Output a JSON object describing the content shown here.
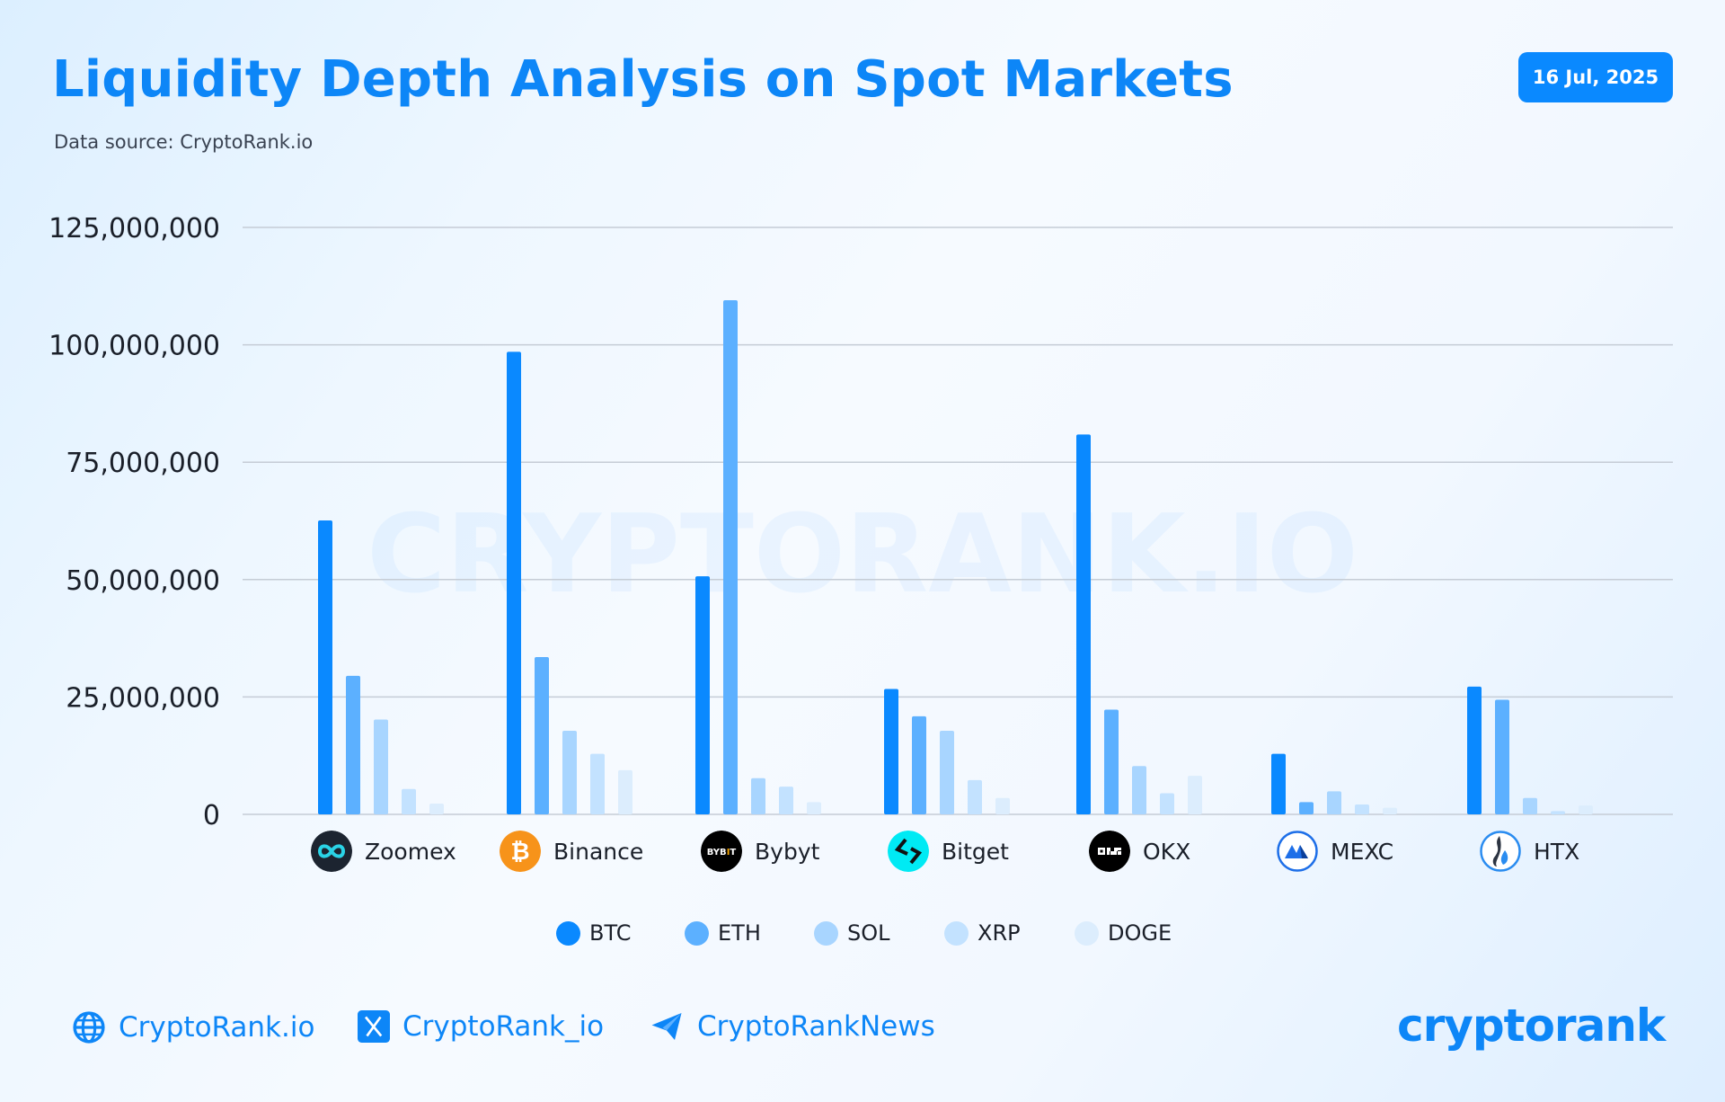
{
  "header": {
    "title": "Liquidity Depth Analysis on Spot Markets",
    "subtitle": "Data source: CryptoRank.io",
    "date": "16 Jul, 2025"
  },
  "watermark": "CRYPTORANK.IO",
  "chart_data": {
    "type": "bar",
    "title": "Liquidity Depth Analysis on Spot Markets",
    "xlabel": "",
    "ylabel": "",
    "ylim": [
      0,
      125000000
    ],
    "yticks": [
      0,
      25000000,
      50000000,
      75000000,
      100000000,
      125000000
    ],
    "ytick_labels": [
      "0",
      "25,000,000",
      "50,000,000",
      "75,000,000",
      "100,000,000",
      "125,000,000"
    ],
    "grid": true,
    "legend_position": "bottom",
    "categories": [
      "Zoomex",
      "Binance",
      "Bybyt",
      "Bitget",
      "OKX",
      "MEXC",
      "HTX"
    ],
    "series": [
      {
        "name": "BTC",
        "color": "#0a89ff",
        "values": [
          62600000,
          98500000,
          50700000,
          26700000,
          80900000,
          12900000,
          27200000
        ]
      },
      {
        "name": "ETH",
        "color": "#5cb0ff",
        "values": [
          29500000,
          33500000,
          109500000,
          20900000,
          22300000,
          2600000,
          24400000
        ]
      },
      {
        "name": "SOL",
        "color": "#a8d5ff",
        "values": [
          20200000,
          17800000,
          7700000,
          17800000,
          10300000,
          4900000,
          3500000
        ]
      },
      {
        "name": "XRP",
        "color": "#c3e2ff",
        "values": [
          5400000,
          12900000,
          5900000,
          7300000,
          4500000,
          2100000,
          700000
        ]
      },
      {
        "name": "DOGE",
        "color": "#dcedfd",
        "values": [
          2300000,
          9400000,
          2600000,
          3500000,
          8200000,
          1400000,
          1900000
        ]
      }
    ]
  },
  "exchanges": [
    {
      "name": "Zoomex",
      "icon": "zoomex-logo-icon",
      "color": "#1c2430"
    },
    {
      "name": "Binance",
      "icon": "bitcoin-logo-icon",
      "color": "#f7931a"
    },
    {
      "name": "Bybyt",
      "icon": "bybit-logo-icon",
      "color": "#000000",
      "logo_text": "BYBIT"
    },
    {
      "name": "Bitget",
      "icon": "bitget-logo-icon",
      "color": "#00f0ff"
    },
    {
      "name": "OKX",
      "icon": "okx-logo-icon",
      "color": "#000000"
    },
    {
      "name": "MEXC",
      "icon": "mexc-logo-icon",
      "color": "#1e6fe8"
    },
    {
      "name": "HTX",
      "icon": "htx-logo-icon",
      "color": "#2a8cf0"
    }
  ],
  "footer": {
    "website": "CryptoRank.io",
    "twitter": "CryptoRank_io",
    "telegram": "CryptoRankNews",
    "brand": "cryptorank"
  }
}
